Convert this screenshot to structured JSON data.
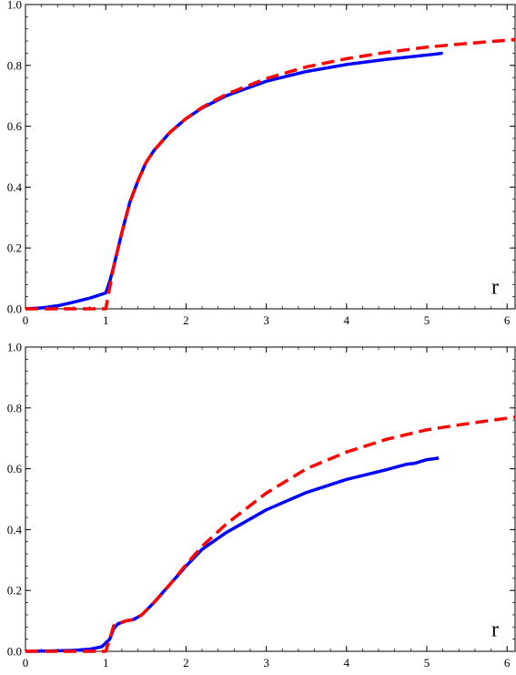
{
  "chart_data": [
    {
      "type": "line",
      "xlabel": "r",
      "ylabel": "",
      "xlim": [
        0,
        6.1
      ],
      "ylim": [
        0,
        1.0
      ],
      "xticks": [
        "0",
        "1",
        "2",
        "3",
        "4",
        "5",
        "6"
      ],
      "yticks": [
        "0.0",
        "0.2",
        "0.4",
        "0.6",
        "0.8",
        "1.0"
      ],
      "grid": false,
      "series": [
        {
          "style": "solid",
          "color": "#0000ff",
          "x": [
            0,
            0.2,
            0.4,
            0.6,
            0.8,
            1.0,
            1.05,
            1.1,
            1.2,
            1.3,
            1.4,
            1.5,
            1.6,
            1.8,
            2.0,
            2.2,
            2.5,
            3.0,
            3.5,
            4.0,
            4.5,
            5.0,
            5.2
          ],
          "y": [
            0.0,
            0.003,
            0.01,
            0.022,
            0.035,
            0.052,
            0.09,
            0.14,
            0.25,
            0.35,
            0.42,
            0.48,
            0.52,
            0.58,
            0.625,
            0.66,
            0.7,
            0.748,
            0.78,
            0.803,
            0.82,
            0.834,
            0.84
          ]
        },
        {
          "style": "dashed",
          "color": "#ff0000",
          "x": [
            0,
            0.5,
            0.98,
            1.0,
            1.05,
            1.1,
            1.2,
            1.3,
            1.4,
            1.5,
            1.6,
            1.8,
            2.0,
            2.2,
            2.5,
            3.0,
            3.5,
            4.0,
            4.5,
            5.0,
            5.5,
            6.1
          ],
          "y": [
            0.0,
            0.0,
            0.0,
            0.0,
            0.07,
            0.14,
            0.25,
            0.35,
            0.42,
            0.48,
            0.52,
            0.58,
            0.625,
            0.662,
            0.705,
            0.757,
            0.795,
            0.822,
            0.843,
            0.86,
            0.872,
            0.885
          ]
        }
      ],
      "annotations": [
        "r"
      ]
    },
    {
      "type": "line",
      "xlabel": "r",
      "ylabel": "",
      "xlim": [
        0,
        6.1
      ],
      "ylim": [
        0,
        1.0
      ],
      "xticks": [
        "0",
        "1",
        "2",
        "3",
        "4",
        "5",
        "6"
      ],
      "yticks": [
        "0.0",
        "0.2",
        "0.4",
        "0.6",
        "0.8",
        "1.0"
      ],
      "grid": false,
      "series": [
        {
          "style": "solid",
          "color": "#0000ff",
          "x": [
            0,
            0.3,
            0.6,
            0.8,
            0.95,
            1.05,
            1.1,
            1.15,
            1.25,
            1.35,
            1.45,
            1.6,
            1.8,
            2.0,
            2.2,
            2.5,
            3.0,
            3.5,
            4.0,
            4.5,
            4.75,
            4.85,
            5.0,
            5.15
          ],
          "y": [
            0.0,
            0.001,
            0.003,
            0.007,
            0.015,
            0.04,
            0.075,
            0.09,
            0.1,
            0.105,
            0.12,
            0.16,
            0.22,
            0.28,
            0.335,
            0.39,
            0.465,
            0.522,
            0.565,
            0.597,
            0.615,
            0.618,
            0.63,
            0.635
          ]
        },
        {
          "style": "dashed",
          "color": "#ff0000",
          "x": [
            0,
            0.5,
            0.98,
            1.0,
            1.05,
            1.1,
            1.15,
            1.25,
            1.35,
            1.45,
            1.6,
            1.8,
            2.0,
            2.2,
            2.5,
            3.0,
            3.5,
            4.0,
            4.5,
            5.0,
            5.5,
            6.1
          ],
          "y": [
            0.0,
            0.0,
            0.0,
            0.0,
            0.04,
            0.085,
            0.09,
            0.1,
            0.105,
            0.12,
            0.16,
            0.22,
            0.285,
            0.345,
            0.418,
            0.52,
            0.6,
            0.655,
            0.697,
            0.728,
            0.748,
            0.77
          ]
        }
      ],
      "annotations": [
        "r"
      ]
    }
  ]
}
